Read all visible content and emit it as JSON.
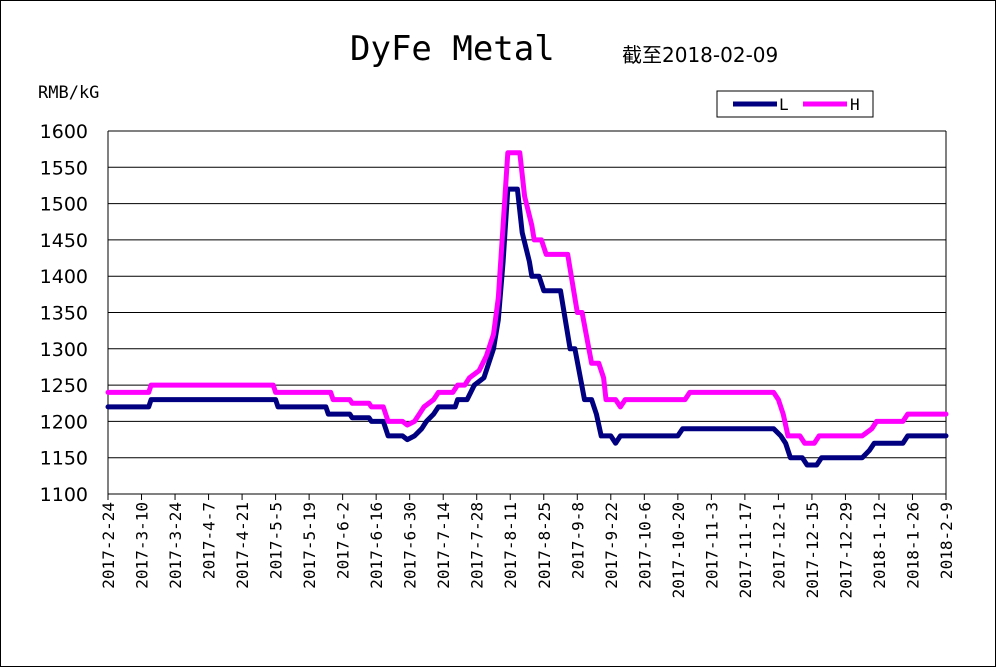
{
  "chart_data": {
    "type": "line",
    "title": "DyFe Metal",
    "subtitle": "截至2018-02-09",
    "ylabel": "RMB/kG",
    "xlabel": "",
    "ylim": [
      1100,
      1600
    ],
    "yticks": [
      1100,
      1150,
      1200,
      1250,
      1300,
      1350,
      1400,
      1450,
      1500,
      1550,
      1600
    ],
    "grid": "horizontal",
    "legend_position": "top-right",
    "x_tick_labels": [
      "2017-2-24",
      "2017-3-10",
      "2017-3-24",
      "2017-4-7",
      "2017-4-21",
      "2017-5-5",
      "2017-5-19",
      "2017-6-2",
      "2017-6-16",
      "2017-6-30",
      "2017-7-14",
      "2017-7-28",
      "2017-8-11",
      "2017-8-25",
      "2017-9-8",
      "2017-9-22",
      "2017-10-6",
      "2017-10-20",
      "2017-11-3",
      "2017-11-17",
      "2017-12-1",
      "2017-12-15",
      "2017-12-29",
      "2018-1-12",
      "2018-1-26",
      "2018-2-9"
    ],
    "series": [
      {
        "name": "L",
        "color": "#000080",
        "points": [
          [
            "2017-02-24",
            1220
          ],
          [
            "2017-03-13",
            1220
          ],
          [
            "2017-03-14",
            1230
          ],
          [
            "2017-05-05",
            1230
          ],
          [
            "2017-05-06",
            1220
          ],
          [
            "2017-05-26",
            1220
          ],
          [
            "2017-05-27",
            1210
          ],
          [
            "2017-06-05",
            1210
          ],
          [
            "2017-06-06",
            1205
          ],
          [
            "2017-06-13",
            1205
          ],
          [
            "2017-06-14",
            1200
          ],
          [
            "2017-06-19",
            1200
          ],
          [
            "2017-06-21",
            1180
          ],
          [
            "2017-06-27",
            1180
          ],
          [
            "2017-06-29",
            1175
          ],
          [
            "2017-07-02",
            1180
          ],
          [
            "2017-07-05",
            1190
          ],
          [
            "2017-07-07",
            1200
          ],
          [
            "2017-07-10",
            1210
          ],
          [
            "2017-07-12",
            1220
          ],
          [
            "2017-07-19",
            1220
          ],
          [
            "2017-07-20",
            1230
          ],
          [
            "2017-07-24",
            1230
          ],
          [
            "2017-07-27",
            1250
          ],
          [
            "2017-07-31",
            1260
          ],
          [
            "2017-08-02",
            1280
          ],
          [
            "2017-08-04",
            1300
          ],
          [
            "2017-08-06",
            1340
          ],
          [
            "2017-08-08",
            1420
          ],
          [
            "2017-08-10",
            1520
          ],
          [
            "2017-08-14",
            1520
          ],
          [
            "2017-08-16",
            1460
          ],
          [
            "2017-08-19",
            1420
          ],
          [
            "2017-08-20",
            1400
          ],
          [
            "2017-08-23",
            1400
          ],
          [
            "2017-08-25",
            1380
          ],
          [
            "2017-09-01",
            1380
          ],
          [
            "2017-09-03",
            1340
          ],
          [
            "2017-09-05",
            1300
          ],
          [
            "2017-09-07",
            1300
          ],
          [
            "2017-09-11",
            1230
          ],
          [
            "2017-09-14",
            1230
          ],
          [
            "2017-09-16",
            1210
          ],
          [
            "2017-09-18",
            1180
          ],
          [
            "2017-09-22",
            1180
          ],
          [
            "2017-09-24",
            1170
          ],
          [
            "2017-09-26",
            1180
          ],
          [
            "2017-10-20",
            1180
          ],
          [
            "2017-10-22",
            1190
          ],
          [
            "2017-11-29",
            1190
          ],
          [
            "2017-12-02",
            1180
          ],
          [
            "2017-12-04",
            1170
          ],
          [
            "2017-12-06",
            1150
          ],
          [
            "2017-12-11",
            1150
          ],
          [
            "2017-12-13",
            1140
          ],
          [
            "2017-12-17",
            1140
          ],
          [
            "2017-12-19",
            1150
          ],
          [
            "2018-01-05",
            1150
          ],
          [
            "2018-01-08",
            1160
          ],
          [
            "2018-01-10",
            1170
          ],
          [
            "2018-01-22",
            1170
          ],
          [
            "2018-01-24",
            1180
          ],
          [
            "2018-02-09",
            1180
          ]
        ]
      },
      {
        "name": "H",
        "color": "#FF00FF",
        "points": [
          [
            "2017-02-24",
            1240
          ],
          [
            "2017-03-13",
            1240
          ],
          [
            "2017-03-14",
            1250
          ],
          [
            "2017-05-04",
            1250
          ],
          [
            "2017-05-05",
            1240
          ],
          [
            "2017-05-28",
            1240
          ],
          [
            "2017-05-29",
            1230
          ],
          [
            "2017-06-05",
            1230
          ],
          [
            "2017-06-06",
            1225
          ],
          [
            "2017-06-13",
            1225
          ],
          [
            "2017-06-14",
            1220
          ],
          [
            "2017-06-19",
            1220
          ],
          [
            "2017-06-21",
            1200
          ],
          [
            "2017-06-27",
            1200
          ],
          [
            "2017-06-29",
            1195
          ],
          [
            "2017-07-02",
            1200
          ],
          [
            "2017-07-04",
            1210
          ],
          [
            "2017-07-06",
            1220
          ],
          [
            "2017-07-10",
            1230
          ],
          [
            "2017-07-12",
            1240
          ],
          [
            "2017-07-18",
            1240
          ],
          [
            "2017-07-20",
            1250
          ],
          [
            "2017-07-23",
            1250
          ],
          [
            "2017-07-25",
            1260
          ],
          [
            "2017-07-29",
            1270
          ],
          [
            "2017-08-01",
            1290
          ],
          [
            "2017-08-04",
            1320
          ],
          [
            "2017-08-06",
            1370
          ],
          [
            "2017-08-08",
            1470
          ],
          [
            "2017-08-10",
            1570
          ],
          [
            "2017-08-15",
            1570
          ],
          [
            "2017-08-17",
            1510
          ],
          [
            "2017-08-20",
            1470
          ],
          [
            "2017-08-21",
            1450
          ],
          [
            "2017-08-24",
            1450
          ],
          [
            "2017-08-26",
            1430
          ],
          [
            "2017-09-04",
            1430
          ],
          [
            "2017-09-06",
            1390
          ],
          [
            "2017-09-08",
            1350
          ],
          [
            "2017-09-10",
            1350
          ],
          [
            "2017-09-14",
            1280
          ],
          [
            "2017-09-17",
            1280
          ],
          [
            "2017-09-19",
            1260
          ],
          [
            "2017-09-20",
            1230
          ],
          [
            "2017-09-24",
            1230
          ],
          [
            "2017-09-26",
            1220
          ],
          [
            "2017-09-28",
            1230
          ],
          [
            "2017-10-23",
            1230
          ],
          [
            "2017-10-25",
            1240
          ],
          [
            "2017-11-29",
            1240
          ],
          [
            "2017-12-01",
            1230
          ],
          [
            "2017-12-03",
            1210
          ],
          [
            "2017-12-05",
            1180
          ],
          [
            "2017-12-10",
            1180
          ],
          [
            "2017-12-12",
            1170
          ],
          [
            "2017-12-16",
            1170
          ],
          [
            "2017-12-18",
            1180
          ],
          [
            "2018-01-05",
            1180
          ],
          [
            "2018-01-09",
            1190
          ],
          [
            "2018-01-11",
            1200
          ],
          [
            "2018-01-22",
            1200
          ],
          [
            "2018-01-24",
            1210
          ],
          [
            "2018-02-09",
            1210
          ]
        ]
      }
    ]
  }
}
